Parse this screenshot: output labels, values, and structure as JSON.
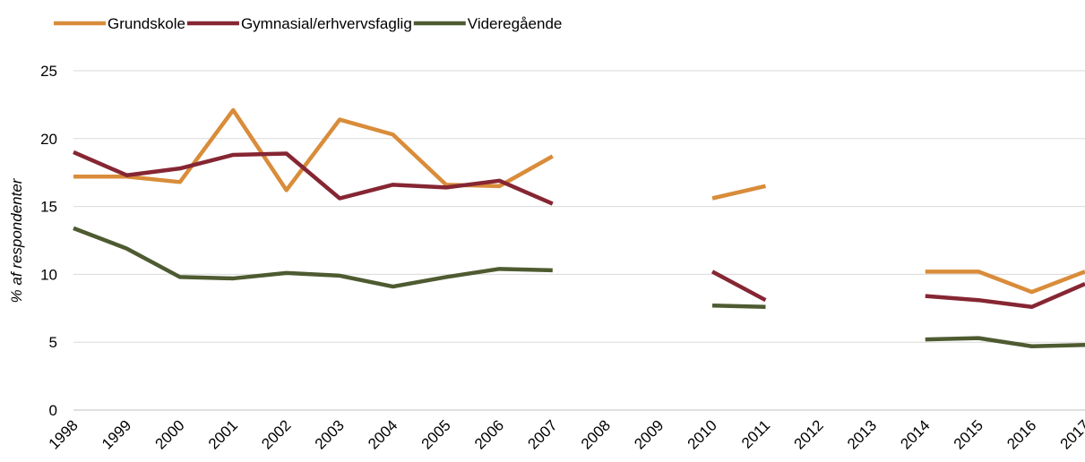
{
  "chart_data": {
    "type": "line",
    "ylabel": "% af respondenter",
    "categories": [
      "1998",
      "1999",
      "2000",
      "2001",
      "2002",
      "2003",
      "2004",
      "2005",
      "2006",
      "2007",
      "2008",
      "2009",
      "2010",
      "2011",
      "2012",
      "2013",
      "2014",
      "2015",
      "2016",
      "2017"
    ],
    "series": [
      {
        "name": "Grundskole",
        "color": "#d98c3a",
        "values": [
          17.2,
          17.2,
          16.8,
          22.1,
          16.2,
          21.4,
          20.3,
          16.6,
          16.5,
          18.7,
          null,
          null,
          15.6,
          16.5,
          null,
          null,
          10.2,
          10.2,
          8.7,
          10.2
        ]
      },
      {
        "name": "Gymnasial/erhvervsfaglig",
        "color": "#862633",
        "values": [
          19.0,
          17.3,
          17.8,
          18.8,
          18.9,
          15.6,
          16.6,
          16.4,
          16.9,
          15.2,
          null,
          null,
          10.2,
          8.1,
          null,
          null,
          8.4,
          8.1,
          7.6,
          9.3
        ]
      },
      {
        "name": "Videregående",
        "color": "#4e5b31",
        "values": [
          13.4,
          11.9,
          9.8,
          9.7,
          10.1,
          9.9,
          9.1,
          9.8,
          10.4,
          10.3,
          null,
          null,
          7.7,
          7.6,
          null,
          null,
          5.2,
          5.3,
          4.7,
          4.8
        ]
      }
    ],
    "ylim": [
      0,
      25
    ],
    "yticks": [
      0,
      5,
      10,
      15,
      20,
      25
    ],
    "grid": true,
    "legend": "top-left"
  }
}
